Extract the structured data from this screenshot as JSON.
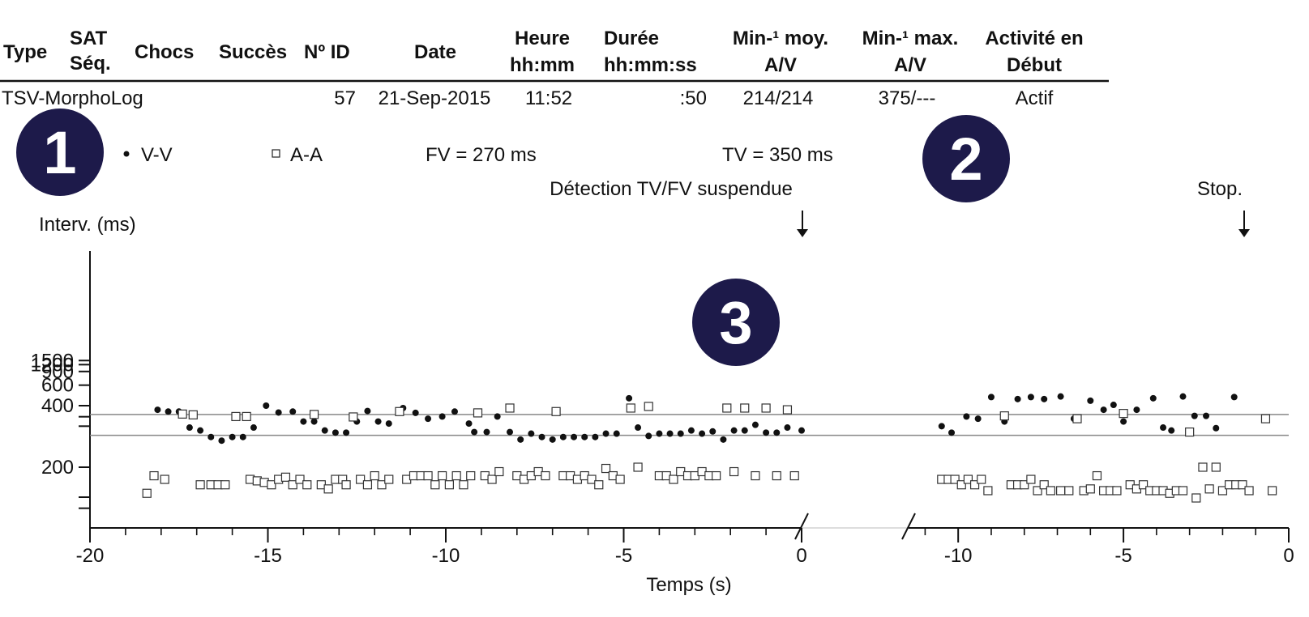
{
  "table": {
    "headers": [
      {
        "key": "type",
        "line1": "Type",
        "line2": ""
      },
      {
        "key": "sat",
        "line1": "SAT",
        "line2": "Séq."
      },
      {
        "key": "chocs",
        "line1": "Chocs",
        "line2": ""
      },
      {
        "key": "succes",
        "line1": "Succès",
        "line2": ""
      },
      {
        "key": "id",
        "line1": "Nº ID",
        "line2": ""
      },
      {
        "key": "date",
        "line1": "Date",
        "line2": ""
      },
      {
        "key": "heure",
        "line1": "Heure",
        "line2": "hh:mm"
      },
      {
        "key": "duree",
        "line1": "Durée",
        "line2": "hh:mm:ss"
      },
      {
        "key": "moy",
        "line1": "Min-¹ moy.",
        "line2": "A/V"
      },
      {
        "key": "max",
        "line1": "Min-¹ max.",
        "line2": "A/V"
      },
      {
        "key": "activite",
        "line1": "Activité en",
        "line2": "Début"
      }
    ],
    "row": {
      "type": "TSV-MorphoLog",
      "id": "57",
      "date": "21-Sep-2015",
      "heure": "11:52",
      "duree": ":50",
      "moy": "214/214",
      "max": "375/---",
      "activite": "Actif"
    }
  },
  "badges": [
    "1",
    "2",
    "3"
  ],
  "legend": {
    "vv": "V-V",
    "aa": "A-A",
    "fv": "FV = 270 ms",
    "tv": "TV = 350 ms"
  },
  "annotations": {
    "suspend": "Détection TV/FV suspendue",
    "stop": "Stop."
  },
  "colors": {
    "badge": "#1d1a4a",
    "threshold_line": "#888888",
    "axis": "#111111"
  },
  "chart_data": {
    "type": "scatter",
    "ylabel": "Interv. (ms)",
    "xlabel": "Temps (s)",
    "y_scale": "reciprocal",
    "y_ticks": [
      1500,
      1200,
      900,
      600,
      400,
      200
    ],
    "y_minor_ticks": [
      300,
      150
    ],
    "thresholds": [
      {
        "name": "TV = 350 ms",
        "value": 350
      },
      {
        "name": "FV = 270 ms",
        "value": 270
      }
    ],
    "panels": [
      {
        "xlim": [
          -20,
          0
        ],
        "x_ticks": [
          -20,
          -15,
          -10,
          -5,
          0
        ],
        "series": [
          {
            "name": "V-V",
            "marker": "dot",
            "points": [
              [
                -18.1,
                375
              ],
              [
                -17.8,
                365
              ],
              [
                -17.5,
                365
              ],
              [
                -17.2,
                295
              ],
              [
                -16.9,
                285
              ],
              [
                -16.6,
                265
              ],
              [
                -16.3,
                255
              ],
              [
                -16.0,
                265
              ],
              [
                -15.7,
                265
              ],
              [
                -15.4,
                295
              ],
              [
                -15.05,
                400
              ],
              [
                -14.7,
                360
              ],
              [
                -14.3,
                365
              ],
              [
                -14.0,
                318
              ],
              [
                -13.7,
                318
              ],
              [
                -13.4,
                285
              ],
              [
                -13.1,
                278
              ],
              [
                -12.8,
                278
              ],
              [
                -12.5,
                318
              ],
              [
                -12.2,
                368
              ],
              [
                -11.9,
                318
              ],
              [
                -11.6,
                310
              ],
              [
                -11.2,
                385
              ],
              [
                -10.85,
                358
              ],
              [
                -10.5,
                330
              ],
              [
                -10.1,
                340
              ],
              [
                -9.75,
                365
              ],
              [
                -9.35,
                310
              ],
              [
                -9.2,
                280
              ],
              [
                -8.85,
                280
              ],
              [
                -8.55,
                340
              ],
              [
                -8.2,
                280
              ],
              [
                -7.9,
                258
              ],
              [
                -7.6,
                275
              ],
              [
                -7.3,
                265
              ],
              [
                -7.0,
                258
              ],
              [
                -6.7,
                265
              ],
              [
                -6.4,
                265
              ],
              [
                -6.1,
                265
              ],
              [
                -5.8,
                265
              ],
              [
                -5.5,
                275
              ],
              [
                -5.2,
                275
              ],
              [
                -4.85,
                455
              ],
              [
                -4.6,
                295
              ],
              [
                -4.3,
                268
              ],
              [
                -4.0,
                275
              ],
              [
                -3.7,
                275
              ],
              [
                -3.4,
                275
              ],
              [
                -3.1,
                285
              ],
              [
                -2.8,
                275
              ],
              [
                -2.5,
                282
              ],
              [
                -2.2,
                258
              ],
              [
                -1.9,
                285
              ],
              [
                -1.6,
                285
              ],
              [
                -1.3,
                305
              ],
              [
                -1.0,
                278
              ],
              [
                -0.7,
                278
              ],
              [
                -0.4,
                295
              ],
              [
                0.0,
                285
              ]
            ]
          },
          {
            "name": "A-A",
            "marker": "square",
            "points": [
              [
                -18.4,
                165
              ],
              [
                -18.2,
                187
              ],
              [
                -17.9,
                182
              ],
              [
                -17.4,
                352
              ],
              [
                -17.1,
                348
              ],
              [
                -16.9,
                175
              ],
              [
                -16.6,
                175
              ],
              [
                -16.4,
                175
              ],
              [
                -16.2,
                175
              ],
              [
                -15.9,
                340
              ],
              [
                -15.6,
                340
              ],
              [
                -15.5,
                182
              ],
              [
                -15.3,
                180
              ],
              [
                -15.1,
                178
              ],
              [
                -14.9,
                175
              ],
              [
                -14.7,
                182
              ],
              [
                -14.5,
                185
              ],
              [
                -14.3,
                175
              ],
              [
                -14.1,
                182
              ],
              [
                -13.9,
                175
              ],
              [
                -13.7,
                350
              ],
              [
                -13.5,
                175
              ],
              [
                -13.3,
                170
              ],
              [
                -13.1,
                182
              ],
              [
                -12.9,
                182
              ],
              [
                -12.8,
                175
              ],
              [
                -12.6,
                338
              ],
              [
                -12.4,
                182
              ],
              [
                -12.2,
                175
              ],
              [
                -12.0,
                187
              ],
              [
                -11.8,
                175
              ],
              [
                -11.6,
                182
              ],
              [
                -11.3,
                365
              ],
              [
                -11.1,
                182
              ],
              [
                -10.9,
                187
              ],
              [
                -10.7,
                187
              ],
              [
                -10.5,
                187
              ],
              [
                -10.3,
                175
              ],
              [
                -10.1,
                187
              ],
              [
                -9.9,
                175
              ],
              [
                -9.7,
                187
              ],
              [
                -9.5,
                175
              ],
              [
                -9.3,
                187
              ],
              [
                -9.1,
                358
              ],
              [
                -8.9,
                187
              ],
              [
                -8.7,
                182
              ],
              [
                -8.5,
                193
              ],
              [
                -8.2,
                385
              ],
              [
                -8.0,
                187
              ],
              [
                -7.8,
                182
              ],
              [
                -7.6,
                187
              ],
              [
                -7.4,
                193
              ],
              [
                -7.2,
                187
              ],
              [
                -6.9,
                365
              ],
              [
                -6.7,
                187
              ],
              [
                -6.5,
                187
              ],
              [
                -6.3,
                182
              ],
              [
                -6.1,
                187
              ],
              [
                -5.9,
                182
              ],
              [
                -5.7,
                175
              ],
              [
                -5.5,
                198
              ],
              [
                -5.3,
                187
              ],
              [
                -5.1,
                182
              ],
              [
                -4.8,
                385
              ],
              [
                -4.6,
                200
              ],
              [
                -4.3,
                395
              ],
              [
                -4.0,
                187
              ],
              [
                -3.8,
                187
              ],
              [
                -3.6,
                182
              ],
              [
                -3.4,
                193
              ],
              [
                -3.2,
                187
              ],
              [
                -3.0,
                187
              ],
              [
                -2.8,
                193
              ],
              [
                -2.6,
                187
              ],
              [
                -2.4,
                187
              ],
              [
                -2.1,
                385
              ],
              [
                -1.9,
                193
              ],
              [
                -1.6,
                385
              ],
              [
                -1.3,
                187
              ],
              [
                -1.0,
                385
              ],
              [
                -0.7,
                187
              ],
              [
                -0.4,
                375
              ],
              [
                -0.2,
                187
              ]
            ]
          }
        ]
      },
      {
        "xlim": [
          -11.5,
          0
        ],
        "x_ticks": [
          -10,
          -5,
          0
        ],
        "series": [
          {
            "name": "V-V",
            "marker": "dot",
            "points": [
              [
                -10.5,
                300
              ],
              [
                -10.2,
                278
              ],
              [
                -9.75,
                340
              ],
              [
                -9.4,
                330
              ],
              [
                -9.0,
                465
              ],
              [
                -8.6,
                318
              ],
              [
                -8.2,
                448
              ],
              [
                -7.8,
                465
              ],
              [
                -7.4,
                448
              ],
              [
                -6.9,
                470
              ],
              [
                -6.5,
                330
              ],
              [
                -6.0,
                435
              ],
              [
                -5.6,
                375
              ],
              [
                -5.3,
                405
              ],
              [
                -5.0,
                318
              ],
              [
                -4.6,
                375
              ],
              [
                -4.1,
                455
              ],
              [
                -3.8,
                295
              ],
              [
                -3.55,
                285
              ],
              [
                -3.2,
                470
              ],
              [
                -2.85,
                343
              ],
              [
                -2.5,
                343
              ],
              [
                -2.2,
                293
              ],
              [
                -1.65,
                465
              ]
            ]
          },
          {
            "name": "A-A",
            "marker": "square",
            "points": [
              [
                -10.5,
                182
              ],
              [
                -10.3,
                182
              ],
              [
                -10.1,
                182
              ],
              [
                -9.9,
                175
              ],
              [
                -9.7,
                182
              ],
              [
                -9.5,
                175
              ],
              [
                -9.3,
                182
              ],
              [
                -9.1,
                168
              ],
              [
                -8.6,
                343
              ],
              [
                -8.4,
                175
              ],
              [
                -8.2,
                175
              ],
              [
                -8.0,
                175
              ],
              [
                -7.8,
                182
              ],
              [
                -7.6,
                168
              ],
              [
                -7.4,
                175
              ],
              [
                -7.2,
                168
              ],
              [
                -6.9,
                168
              ],
              [
                -6.65,
                168
              ],
              [
                -6.4,
                330
              ],
              [
                -6.2,
                168
              ],
              [
                -6.0,
                170
              ],
              [
                -5.8,
                187
              ],
              [
                -5.6,
                168
              ],
              [
                -5.4,
                168
              ],
              [
                -5.2,
                168
              ],
              [
                -5.0,
                355
              ],
              [
                -4.8,
                175
              ],
              [
                -4.6,
                170
              ],
              [
                -4.4,
                175
              ],
              [
                -4.2,
                168
              ],
              [
                -4.0,
                168
              ],
              [
                -3.8,
                168
              ],
              [
                -3.6,
                165
              ],
              [
                -3.4,
                168
              ],
              [
                -3.2,
                168
              ],
              [
                -3.0,
                280
              ],
              [
                -2.8,
                160
              ],
              [
                -2.6,
                200
              ],
              [
                -2.4,
                170
              ],
              [
                -2.2,
                200
              ],
              [
                -2.0,
                168
              ],
              [
                -1.8,
                175
              ],
              [
                -1.6,
                175
              ],
              [
                -1.4,
                175
              ],
              [
                -1.2,
                168
              ],
              [
                -0.7,
                330
              ],
              [
                -0.5,
                168
              ]
            ]
          }
        ]
      }
    ]
  }
}
